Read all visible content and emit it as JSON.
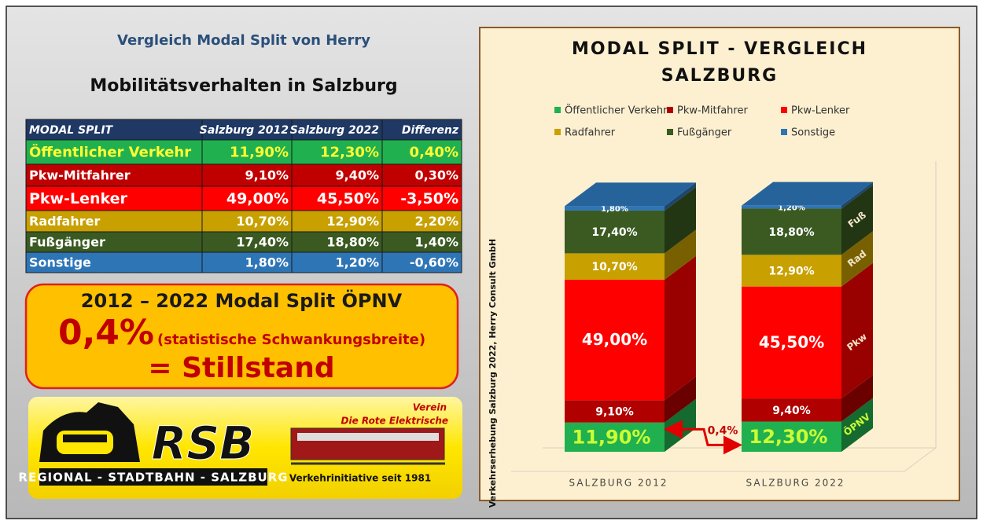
{
  "header": {
    "title": "Vergleich Modal Split von Herry",
    "subtitle": "Mobilitätsverhalten in Salzburg"
  },
  "table": {
    "header": [
      "MODAL SPLIT",
      "Salzburg 2012",
      "Salzburg 2022",
      "Differenz"
    ],
    "rows": [
      [
        "Öffentlicher Verkehr",
        "11,90%",
        "12,30%",
        "0,40%"
      ],
      [
        "Pkw-Mitfahrer",
        "9,10%",
        "9,40%",
        "0,30%"
      ],
      [
        "Pkw-Lenker",
        "49,00%",
        "45,50%",
        "-3,50%"
      ],
      [
        "Radfahrer",
        "10,70%",
        "12,90%",
        "2,20%"
      ],
      [
        "Fußgänger",
        "17,40%",
        "18,80%",
        "1,40%"
      ],
      [
        "Sonstige",
        "1,80%",
        "1,20%",
        "-0,60%"
      ]
    ]
  },
  "callout": {
    "line1": "2012 – 2022 Modal Split ÖPNV",
    "value": "0,4%",
    "note": "(statistische Schwankungsbreite)",
    "conclusion": "= Stillstand"
  },
  "logo": {
    "club": "Verein",
    "club_name": "Die Rote Elektrische",
    "mark": "RSB",
    "tagline": "REGIONAL - STADTBAHN - SALZBURG",
    "since": "Verkehrinitiative seit 1981"
  },
  "chart_data": {
    "type": "bar",
    "stacked": true,
    "title": "MODAL SPLIT - VERGLEICH",
    "subtitle": "SALZBURG",
    "source": "Verkehrserhebung Salzburg 2022, Herry Consult GmbH",
    "categories": [
      "SALZBURG 2012",
      "SALZBURG 2022"
    ],
    "ylim": [
      0,
      100
    ],
    "series": [
      {
        "name": "Öffentlicher Verkehr",
        "color": "#21b04f",
        "values": [
          11.9,
          12.3
        ],
        "value_labels": [
          "11,90%",
          "12,30%"
        ]
      },
      {
        "name": "Pkw-Mitfahrer",
        "color": "#b00000",
        "values": [
          9.1,
          9.4
        ],
        "value_labels": [
          "9,10%",
          "9,40%"
        ]
      },
      {
        "name": "Pkw-Lenker",
        "color": "#ff0000",
        "values": [
          49.0,
          45.5
        ],
        "value_labels": [
          "49,00%",
          "45,50%"
        ]
      },
      {
        "name": "Radfahrer",
        "color": "#c8a000",
        "values": [
          10.7,
          12.9
        ],
        "value_labels": [
          "10,70%",
          "12,90%"
        ]
      },
      {
        "name": "Fußgänger",
        "color": "#3a5a22",
        "values": [
          17.4,
          18.8
        ],
        "value_labels": [
          "17,40%",
          "18,80%"
        ]
      },
      {
        "name": "Sonstige",
        "color": "#2e75b6",
        "values": [
          1.8,
          1.2
        ],
        "value_labels": [
          "1,80%",
          "1,20%"
        ]
      }
    ],
    "side_labels": [
      "ÖPNV",
      "Pkw",
      "Rad",
      "Fuß"
    ],
    "difference_label": "0,4%"
  }
}
